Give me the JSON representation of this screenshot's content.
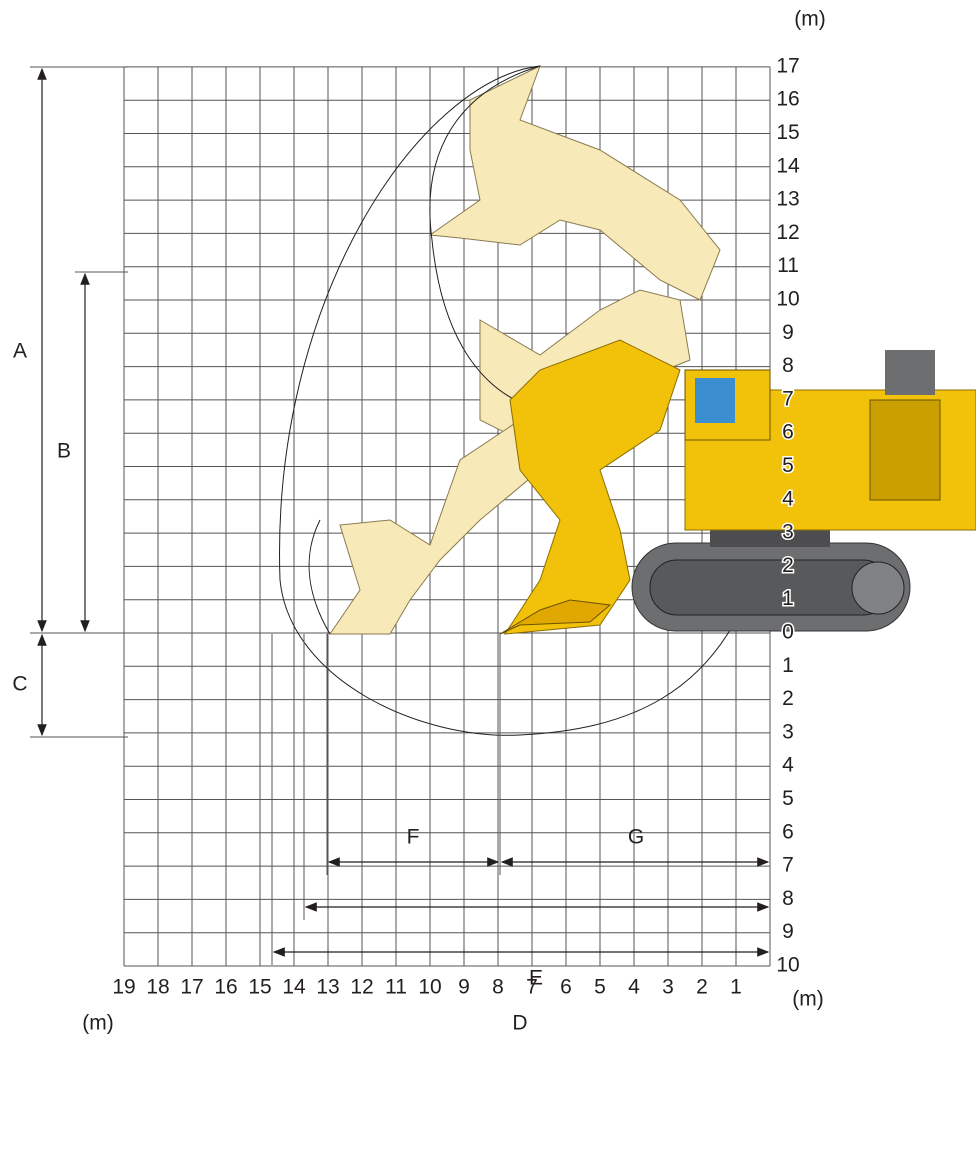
{
  "diagram": {
    "y_axis": {
      "unit": "(m)",
      "labels_up": [
        "17",
        "16",
        "15",
        "14",
        "13",
        "12",
        "11",
        "10",
        "9",
        "8",
        "7",
        "6",
        "5",
        "4",
        "3",
        "2",
        "1",
        "0"
      ],
      "labels_down": [
        "1",
        "2",
        "3",
        "4",
        "5",
        "6",
        "7",
        "8",
        "9",
        "10"
      ]
    },
    "x_axis": {
      "unit_left": "(m)",
      "unit_right": "(m)",
      "labels": [
        "19",
        "18",
        "17",
        "16",
        "15",
        "14",
        "13",
        "12",
        "11",
        "10",
        "9",
        "8",
        "7",
        "6",
        "5",
        "4",
        "3",
        "2",
        "1"
      ]
    },
    "dimensions": {
      "A": "A",
      "B": "B",
      "C": "C",
      "D": "D",
      "E": "E",
      "F": "F",
      "G": "G"
    }
  }
}
